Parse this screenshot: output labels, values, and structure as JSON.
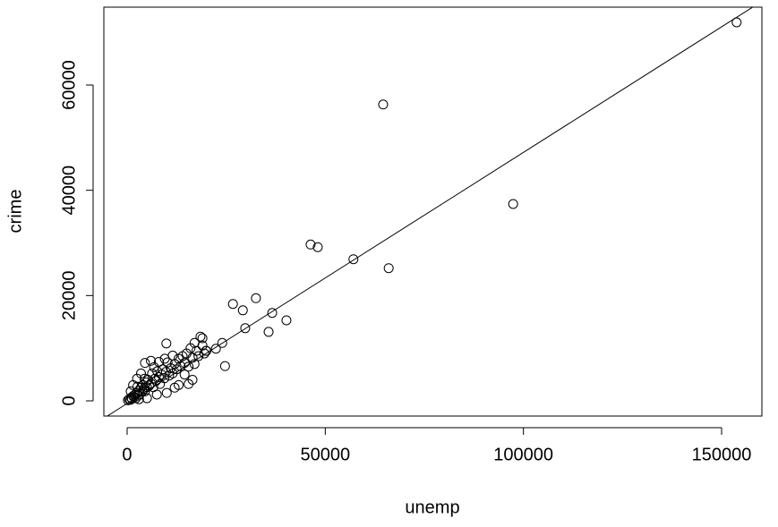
{
  "chart_data": {
    "type": "scatter",
    "x_label": "unemp",
    "y_label": "crime",
    "xlim": [
      -5873,
      160166
    ],
    "ylim": [
      -2890,
      74790
    ],
    "xticks": [
      0,
      50000,
      100000,
      150000
    ],
    "yticks": [
      0,
      20000,
      40000,
      60000
    ],
    "color": "#000000",
    "fit_line": {
      "intercept": -500,
      "slope": 0.477
    },
    "x": [
      153800,
      64600,
      97400,
      46300,
      48100,
      57100,
      66000,
      26700,
      29200,
      32500,
      36600,
      40200,
      35700,
      29800,
      24700,
      24000,
      22400,
      19000,
      19900,
      9900,
      200,
      500,
      800,
      1000,
      1200,
      1500,
      1800,
      2000,
      2200,
      2500,
      2800,
      3000,
      3200,
      3500,
      3800,
      4000,
      4200,
      4500,
      4800,
      5000,
      5300,
      5600,
      6000,
      6300,
      6600,
      7000,
      7300,
      7600,
      8000,
      8300,
      8700,
      9000,
      9400,
      9800,
      10200,
      10600,
      11000,
      11500,
      12000,
      12500,
      13000,
      13500,
      14000,
      14500,
      15000,
      15500,
      16000,
      16500,
      17000,
      17500,
      18000,
      18500,
      19000,
      20000,
      2500,
      4500,
      6000,
      1500,
      3500,
      8000,
      11500,
      13000,
      15500,
      10000,
      7500,
      5000,
      3000,
      900,
      2600,
      4400,
      6800,
      9500,
      16500,
      12000,
      14500,
      17000,
      19500
    ],
    "y": [
      71900,
      56300,
      37400,
      29700,
      29200,
      26900,
      25200,
      18400,
      17200,
      19500,
      16700,
      15300,
      13100,
      13800,
      6600,
      11000,
      9900,
      11900,
      9500,
      10900,
      100,
      300,
      200,
      600,
      400,
      900,
      700,
      1200,
      500,
      1500,
      1000,
      2000,
      1300,
      2500,
      1700,
      3000,
      2200,
      1800,
      3500,
      2600,
      4000,
      2900,
      3300,
      5200,
      2600,
      4200,
      3800,
      5600,
      4500,
      3200,
      5000,
      6000,
      4300,
      5500,
      7300,
      4800,
      6200,
      5200,
      7000,
      6000,
      8000,
      6600,
      8500,
      7200,
      9000,
      6500,
      10000,
      8200,
      11000,
      9500,
      8500,
      12200,
      10500,
      9500,
      4200,
      7200,
      7600,
      3000,
      5200,
      7400,
      8600,
      3000,
      3200,
      1500,
      1200,
      500,
      300,
      1800,
      2700,
      4200,
      6400,
      8000,
      4000,
      2500,
      5000,
      7000,
      9000
    ]
  }
}
